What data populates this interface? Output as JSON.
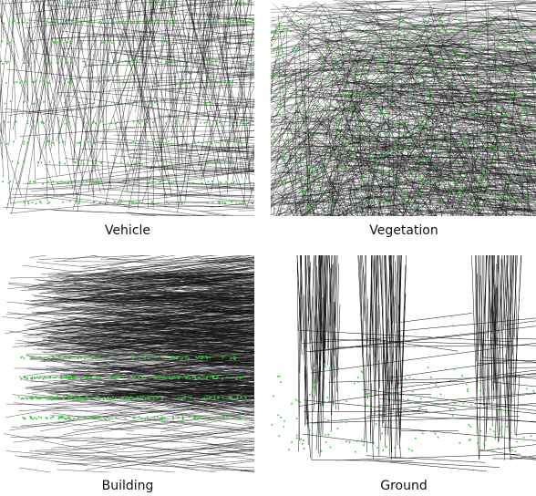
{
  "panels": [
    {
      "caption": "Vehicle"
    },
    {
      "caption": "Vegetation"
    },
    {
      "caption": "Building"
    },
    {
      "caption": "Ground"
    }
  ]
}
